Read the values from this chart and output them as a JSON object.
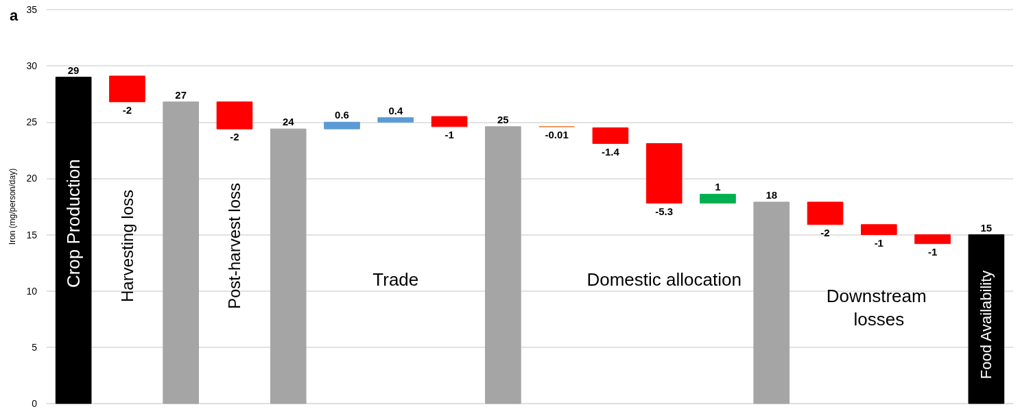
{
  "chart_data": {
    "type": "bar",
    "ylabel": "Iron (mg/person/day)",
    "categories": [
      null,
      null,
      null,
      null,
      null,
      null,
      null,
      null,
      null,
      null,
      null,
      null,
      null,
      null,
      null,
      null,
      null,
      null
    ],
    "values": [
      29,
      -2.3,
      26.8,
      -2.4,
      24.4,
      0.6,
      0.4,
      -0.9,
      24.6,
      -0.01,
      -1.4,
      -5.3,
      0.8,
      17.9,
      -2,
      -0.9,
      -0.8,
      15
    ],
    "base": [
      0,
      29.1,
      0,
      26.8,
      0,
      24.4,
      25.0,
      25.5,
      0,
      24.6,
      24.5,
      23.1,
      17.8,
      0,
      17.9,
      15.9,
      15.0,
      0
    ],
    "colors": [
      "#000000",
      "#ff0000",
      "#a5a5a5",
      "#ff0000",
      "#a5a5a5",
      "#5b9bd5",
      "#5b9bd5",
      "#ff0000",
      "#a5a5a5",
      "#ed7d31",
      "#ff0000",
      "#ff0000",
      "#00b050",
      "#a5a5a5",
      "#ff0000",
      "#ff0000",
      "#ff0000",
      "#000000"
    ],
    "value_labels": [
      "29",
      "-2",
      "27",
      "-2",
      "24",
      "0.6",
      "0.4",
      "-1",
      "25",
      "-0.01",
      "-1.4",
      "-5.3",
      "1",
      "18",
      "-2",
      "-1",
      "-1",
      "15"
    ],
    "ylim": [
      0,
      35
    ],
    "yticks": [
      0,
      5,
      10,
      15,
      20,
      25,
      30,
      35
    ],
    "grid": "y",
    "annotations": [
      "a",
      "Crop Production",
      "Harvesting loss",
      "Post-harvest loss",
      "Trade",
      "Domestic allocation",
      "Downstream losses",
      "Food Availability"
    ]
  }
}
